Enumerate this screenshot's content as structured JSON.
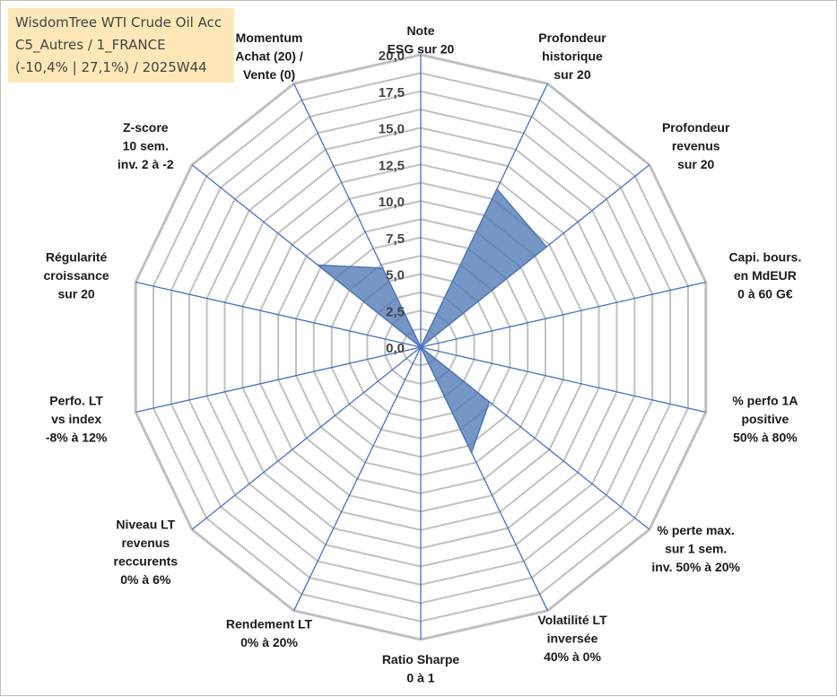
{
  "colors": {
    "grid": "#c0c0c0",
    "spoke": "#4472c4",
    "series_fill": "#4f79b5",
    "series_stroke": "#4f79b5",
    "title_box": "#ffe7b3"
  },
  "title_lines": [
    "WisdomTree WTI Crude Oil Acc",
    "C5_Autres / 1_FRANCE",
    "(-10,4% | 27,1%) / 2025W44"
  ],
  "chart_data": {
    "type": "radar",
    "title": "WisdomTree WTI Crude Oil Acc",
    "subtitle": [
      "C5_Autres / 1_FRANCE",
      "(-10,4% | 27,1%) / 2025W44"
    ],
    "range": [
      0,
      20
    ],
    "ticks": [
      "0,0",
      "2,5",
      "5,0",
      "7,5",
      "10,0",
      "12,5",
      "15,0",
      "17,5",
      "20,0"
    ],
    "grid_rings": 16,
    "axes": [
      {
        "lines": [
          "Note",
          "ESG sur 20"
        ]
      },
      {
        "lines": [
          "Profondeur",
          "historique",
          "sur 20"
        ]
      },
      {
        "lines": [
          "Profondeur",
          "revenus",
          "sur 20"
        ]
      },
      {
        "lines": [
          "Capi. bours.",
          "en MdEUR",
          "0 à 60 G€"
        ]
      },
      {
        "lines": [
          "% perfo 1A",
          "positive",
          "50% à 80%"
        ]
      },
      {
        "lines": [
          "% perte max.",
          "sur 1 sem.",
          "inv. 50% à 20%"
        ]
      },
      {
        "lines": [
          "Volatilité LT",
          "inversée",
          "40% à 0%"
        ]
      },
      {
        "lines": [
          "Ratio Sharpe",
          "0 à 1"
        ]
      },
      {
        "lines": [
          "Rendement LT",
          "0% à 20%"
        ]
      },
      {
        "lines": [
          "Niveau LT",
          "revenus",
          "reccurents",
          "0% à 6%"
        ]
      },
      {
        "lines": [
          "Perfo. LT",
          "vs index",
          "-8% à 12%"
        ]
      },
      {
        "lines": [
          "Régularité",
          "croissance",
          "sur 20"
        ]
      },
      {
        "lines": [
          "Z-score",
          "10 sem.",
          "inv. 2 à -2"
        ]
      },
      {
        "lines": [
          "Momentum",
          "Achat (20) /",
          "Vente (0)"
        ]
      }
    ],
    "series": [
      {
        "values": [
          0,
          12,
          11,
          0,
          0,
          6,
          8,
          0,
          0,
          0,
          0,
          0,
          9,
          6
        ]
      }
    ]
  }
}
